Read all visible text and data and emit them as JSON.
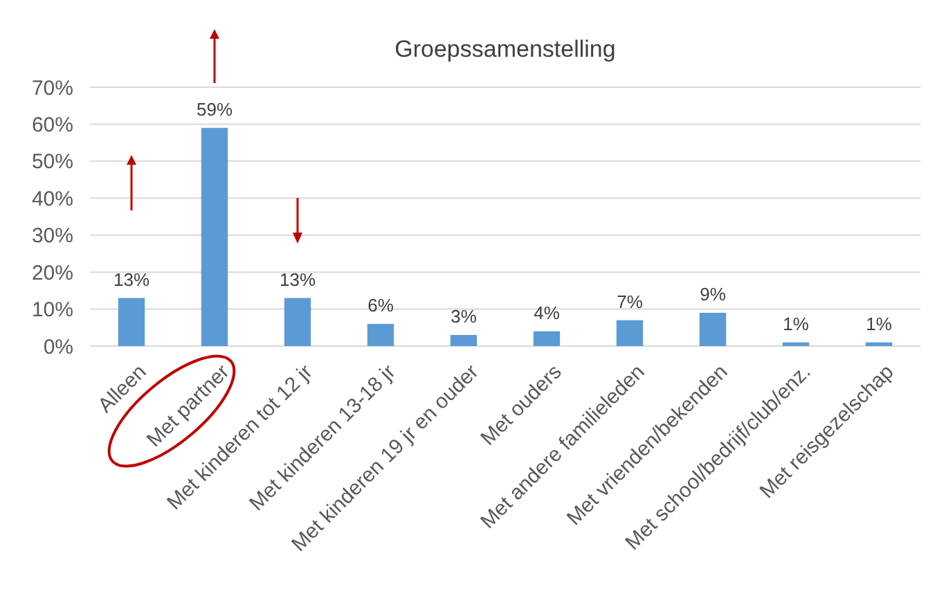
{
  "chart_data": {
    "type": "bar",
    "title": "Groepssamenstelling",
    "categories": [
      "Alleen",
      "Met partner",
      "Met kinderen tot 12 jr",
      "Met kinderen 13-18 jr",
      "Met kinderen 19 jr en ouder",
      "Met ouders",
      "Met andere familieleden",
      "Met vrienden/bekenden",
      "Met school/bedrijf/club/enz.",
      "Met reisgezelschap"
    ],
    "values": [
      13,
      59,
      13,
      6,
      3,
      4,
      7,
      9,
      1,
      1
    ],
    "value_labels": [
      "13%",
      "59%",
      "13%",
      "6%",
      "3%",
      "4%",
      "7%",
      "9%",
      "1%",
      "1%"
    ],
    "color": "#5b9bd5",
    "ylim": [
      0,
      70
    ],
    "yticks": [
      {
        "value": 0,
        "label": "0%"
      },
      {
        "value": 10,
        "label": "10%"
      },
      {
        "value": 20,
        "label": "20%"
      },
      {
        "value": 30,
        "label": "30%"
      },
      {
        "value": 40,
        "label": "40%"
      },
      {
        "value": 50,
        "label": "50%"
      },
      {
        "value": 60,
        "label": "60%"
      },
      {
        "value": 70,
        "label": "70%"
      }
    ],
    "grid": "y"
  }
}
